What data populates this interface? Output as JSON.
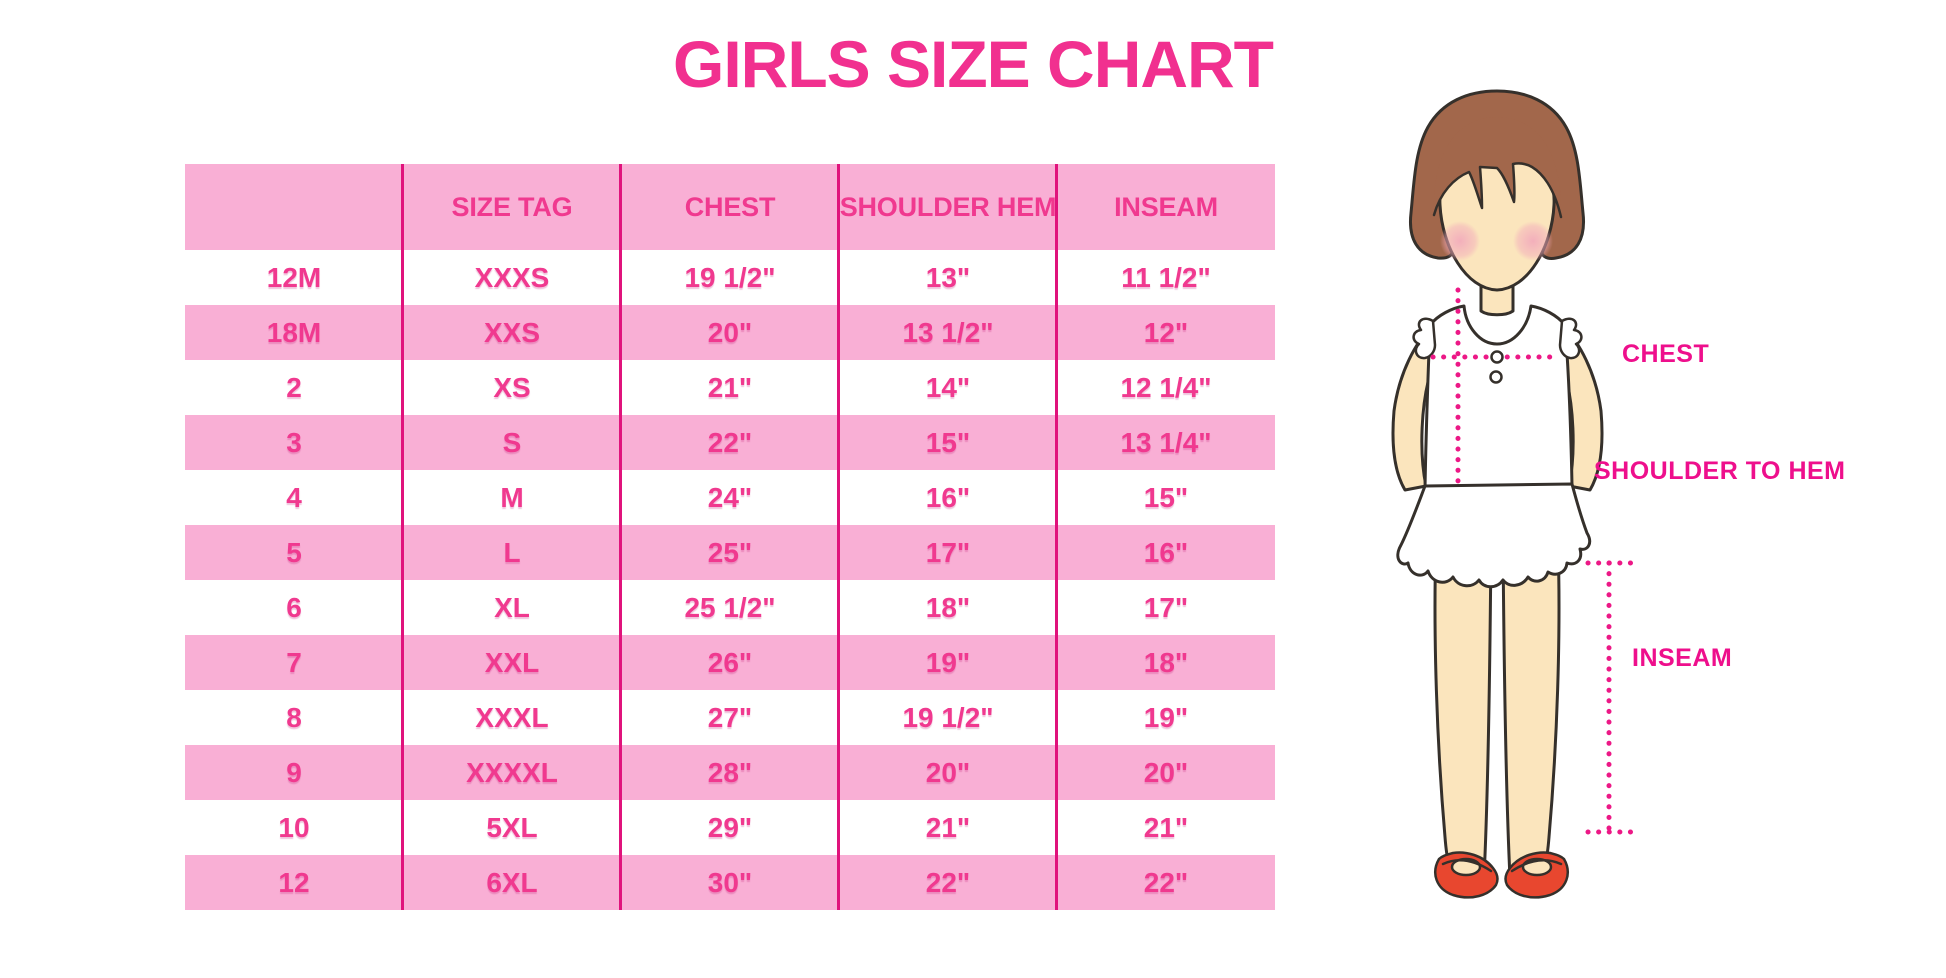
{
  "title": "GIRLS SIZE CHART",
  "table": {
    "headers": [
      "",
      "SIZE TAG",
      "CHEST",
      "SHOULDER HEM",
      "INSEAM"
    ],
    "rows": [
      [
        "12M",
        "XXXS",
        "19 1/2\"",
        "13\"",
        "11 1/2\""
      ],
      [
        "18M",
        "XXS",
        "20\"",
        "13 1/2\"",
        "12\""
      ],
      [
        "2",
        "XS",
        "21\"",
        "14\"",
        "12 1/4\""
      ],
      [
        "3",
        "S",
        "22\"",
        "15\"",
        "13 1/4\""
      ],
      [
        "4",
        "M",
        "24\"",
        "16\"",
        "15\""
      ],
      [
        "5",
        "L",
        "25\"",
        "17\"",
        "16\""
      ],
      [
        "6",
        "XL",
        "25 1/2\"",
        "18\"",
        "17\""
      ],
      [
        "7",
        "XXL",
        "26\"",
        "19\"",
        "18\""
      ],
      [
        "8",
        "XXXL",
        "27\"",
        "19 1/2\"",
        "19\""
      ],
      [
        "9",
        "XXXXL",
        "28\"",
        "20\"",
        "20\""
      ],
      [
        "10",
        "5XL",
        "29\"",
        "21\"",
        "21\""
      ],
      [
        "12",
        "6XL",
        "30\"",
        "22\"",
        "22\""
      ]
    ]
  },
  "diagram_labels": {
    "chest": "CHEST",
    "shoulder_to_hem": "SHOULDER TO HEM",
    "inseam": "INSEAM"
  },
  "colors": {
    "title_pink": "#F1308F",
    "table_text_pink": "#F0398F",
    "row_pink": "#F9AFD5",
    "column_line_magenta": "#E0137C",
    "measurement_dotted_magenta": "#EC1886",
    "label_magenta": "#EE0F8C",
    "hair_brown": "#A2674B",
    "skin": "#FBE5BD",
    "blush": "#F2A9BB",
    "shoe_red": "#E8472F",
    "outline": "#35302B"
  },
  "chart_data": {
    "type": "table",
    "title": "GIRLS SIZE CHART",
    "columns": [
      "",
      "SIZE TAG",
      "CHEST",
      "SHOULDER HEM",
      "INSEAM"
    ],
    "rows": [
      [
        "12M",
        "XXXS",
        "19 1/2\"",
        "13\"",
        "11 1/2\""
      ],
      [
        "18M",
        "XXS",
        "20\"",
        "13 1/2\"",
        "12\""
      ],
      [
        "2",
        "XS",
        "21\"",
        "14\"",
        "12 1/4\""
      ],
      [
        "3",
        "S",
        "22\"",
        "15\"",
        "13 1/4\""
      ],
      [
        "4",
        "M",
        "24\"",
        "16\"",
        "15\""
      ],
      [
        "5",
        "L",
        "25\"",
        "17\"",
        "16\""
      ],
      [
        "6",
        "XL",
        "25 1/2\"",
        "18\"",
        "17\""
      ],
      [
        "7",
        "XXL",
        "26\"",
        "19\"",
        "18\""
      ],
      [
        "8",
        "XXXL",
        "27\"",
        "19 1/2\"",
        "19\""
      ],
      [
        "9",
        "XXXXL",
        "28\"",
        "20\"",
        "20\""
      ],
      [
        "10",
        "5XL",
        "29\"",
        "21\"",
        "21\""
      ],
      [
        "12",
        "6XL",
        "30\"",
        "22\"",
        "22\""
      ]
    ]
  }
}
